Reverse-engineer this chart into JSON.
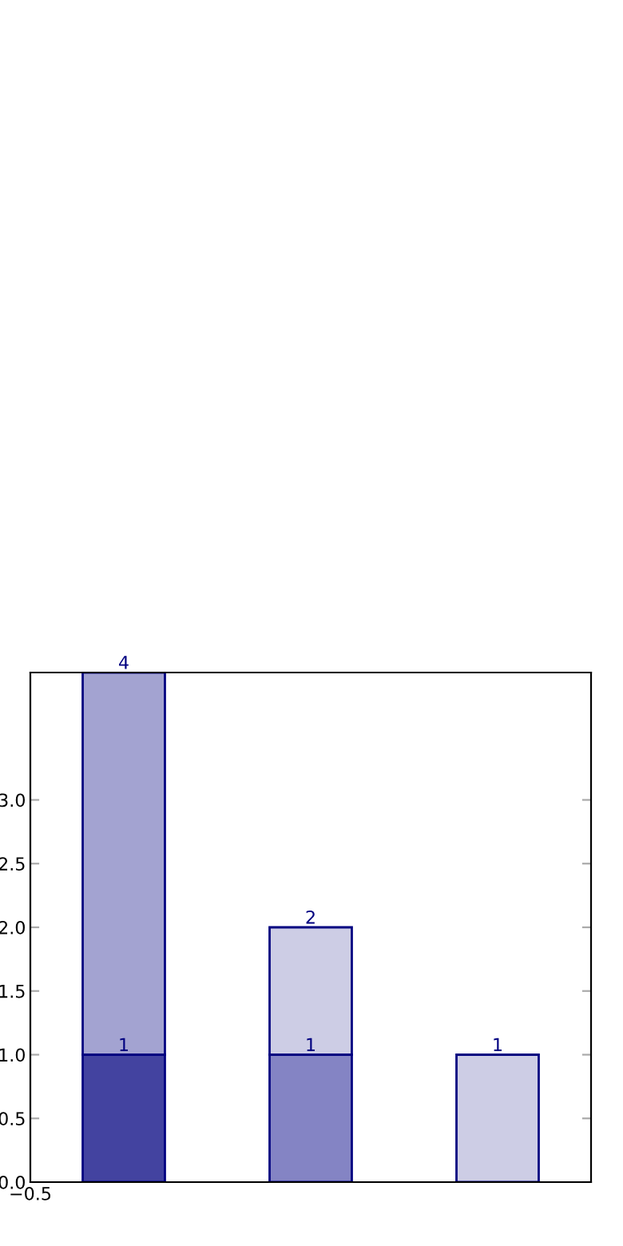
{
  "chart_data": {
    "type": "bar",
    "stacked": true,
    "totals": [
      "4",
      "2",
      "1"
    ],
    "categories": [
      null,
      null,
      null
    ],
    "series": [
      {
        "colors": [
          "#4343a0",
          "#8484c4",
          "#cdcde5"
        ],
        "values": [
          1,
          1,
          1
        ],
        "value_labels": [
          "1",
          "1",
          null
        ]
      },
      {
        "colors": [
          "#a3a3d1",
          "#cdcde5",
          "#cdcde5"
        ],
        "values": [
          3,
          1,
          null
        ]
      }
    ],
    "annotations": [
      "−0.5"
    ],
    "ylim": [
      0,
      4
    ],
    "yticks": [
      {
        "value": 0,
        "label": "0.0"
      },
      {
        "value": 0.5,
        "label": "0.5"
      },
      {
        "value": 1,
        "label": "1.0"
      },
      {
        "value": 1.5,
        "label": "1.5"
      },
      {
        "value": 2,
        "label": "2.0"
      },
      {
        "value": 2.5,
        "label": "2.5"
      },
      {
        "value": 3,
        "label": "3.0"
      }
    ],
    "grid": false,
    "legend": false
  }
}
